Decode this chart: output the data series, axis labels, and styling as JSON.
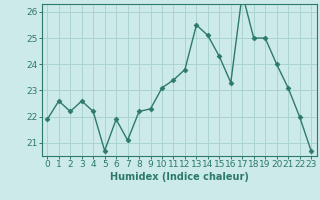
{
  "x": [
    0,
    1,
    2,
    3,
    4,
    5,
    6,
    7,
    8,
    9,
    10,
    11,
    12,
    13,
    14,
    15,
    16,
    17,
    18,
    19,
    20,
    21,
    22,
    23
  ],
  "y": [
    21.9,
    22.6,
    22.2,
    22.6,
    22.2,
    20.7,
    21.9,
    21.1,
    22.2,
    22.3,
    23.1,
    23.4,
    23.8,
    25.5,
    25.1,
    24.3,
    23.3,
    26.7,
    25.0,
    25.0,
    24.0,
    23.1,
    22.0,
    20.7
  ],
  "line_color": "#2d7a6a",
  "marker": "D",
  "markersize": 2.5,
  "linewidth": 1.0,
  "bg_color": "#cceae8",
  "grid_color": "#aad4d0",
  "xlabel": "Humidex (Indice chaleur)",
  "ylim": [
    20.5,
    26.3
  ],
  "yticks": [
    21,
    22,
    23,
    24,
    25,
    26
  ],
  "xticks": [
    0,
    1,
    2,
    3,
    4,
    5,
    6,
    7,
    8,
    9,
    10,
    11,
    12,
    13,
    14,
    15,
    16,
    17,
    18,
    19,
    20,
    21,
    22,
    23
  ],
  "xlabel_fontsize": 7,
  "tick_fontsize": 6.5,
  "line_text_color": "#2d7a6a",
  "spine_color": "#2d7a6a"
}
